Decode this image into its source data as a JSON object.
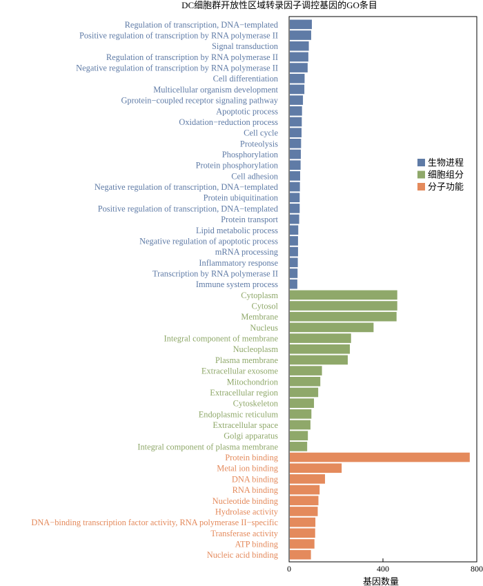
{
  "chart_data": {
    "type": "bar",
    "orientation": "horizontal",
    "title": "DC细胞群开放性区域转录因子调控基因的GO条目",
    "xlabel": "基因数量",
    "ylabel": "",
    "xlim": [
      0,
      800
    ],
    "xticks": [
      "0",
      "400",
      "800"
    ],
    "grid": false,
    "legend_position": "right",
    "series": [
      {
        "name": "生物进程",
        "color": "#5f7ba6",
        "categories": [
          "Regulation of transcription, DNA−templated",
          "Positive regulation of transcription by RNA polymerase II",
          "Signal transduction",
          "Regulation of transcription by RNA polymerase II",
          "Negative regulation of transcription by RNA polymerase II",
          "Cell differentiation",
          "Multicellular organism development",
          "Gprotein−coupled receptor signaling pathway",
          "Apoptotic process",
          "Oxidation−reduction process",
          "Cell cycle",
          "Proteolysis",
          "Phosphorylation",
          "Protein phosphorylation",
          "Cell adhesion",
          "Negative regulation of transcription, DNA−templated",
          "Protein ubiquitination",
          "Positive regulation of transcription, DNA−templated",
          "Protein transport",
          "Lipid metabolic process",
          "Negative regulation of apoptotic process",
          "mRNA processing",
          "Inflammatory response",
          "Transcription by RNA polymerase II",
          "Immune system process"
        ],
        "values": [
          97,
          94,
          84,
          82,
          79,
          66,
          65,
          59,
          55,
          54,
          53,
          51,
          50,
          49,
          47,
          46,
          45,
          45,
          43,
          39,
          38,
          38,
          37,
          36,
          35
        ]
      },
      {
        "name": "细胞组分",
        "color": "#8fa86a",
        "categories": [
          "Cytoplasm",
          "Cytosol",
          "Membrane",
          "Nucleus",
          "Integral component of membrane",
          "Nucleoplasm",
          "Plasma membrane",
          "Extracellular exosome",
          "Mitochondrion",
          "Extracellular region",
          "Cytoskeleton",
          "Endoplasmic reticulum",
          "Extracellular space",
          "Golgi apparatus",
          "Integral component of plasma membrane"
        ],
        "values": [
          461,
          461,
          458,
          360,
          264,
          259,
          250,
          140,
          133,
          124,
          106,
          95,
          91,
          80,
          77
        ]
      },
      {
        "name": "分子功能",
        "color": "#e48a5c",
        "categories": [
          "Protein binding",
          "Metal ion binding",
          "DNA binding",
          "RNA binding",
          "Nucleotide binding",
          "Hydrolase activity",
          "DNA−binding transcription factor activity, RNA polymerase II−specific",
          "Transferase activity",
          "ATP binding",
          "Nucleic acid binding"
        ],
        "values": [
          770,
          224,
          153,
          130,
          125,
          122,
          112,
          111,
          108,
          93
        ]
      }
    ]
  }
}
